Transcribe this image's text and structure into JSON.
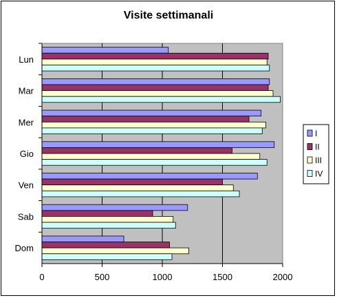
{
  "chart_data": {
    "type": "bar",
    "orientation": "horizontal",
    "title": "Visite settimanali",
    "categories": [
      "Lun",
      "Mar",
      "Mer",
      "Gio",
      "Ven",
      "Sab",
      "Dom"
    ],
    "series": [
      {
        "name": "I",
        "color": "#9999FF",
        "values": [
          1050,
          1890,
          1820,
          1930,
          1790,
          1210,
          680
        ]
      },
      {
        "name": "II",
        "color": "#993366",
        "values": [
          1880,
          1880,
          1720,
          1580,
          1500,
          920,
          1060
        ]
      },
      {
        "name": "III",
        "color": "#FFFFCC",
        "values": [
          1870,
          1920,
          1860,
          1810,
          1590,
          1090,
          1220
        ]
      },
      {
        "name": "IV",
        "color": "#CCFFFF",
        "values": [
          1890,
          1980,
          1830,
          1870,
          1640,
          1110,
          1080
        ]
      }
    ],
    "xlim": [
      0,
      2000
    ],
    "xticks": [
      "0",
      "500",
      "1000",
      "1500",
      "2000"
    ],
    "grid": "vertical",
    "plot_background": "#C0C0C0",
    "legend_position": "right"
  }
}
